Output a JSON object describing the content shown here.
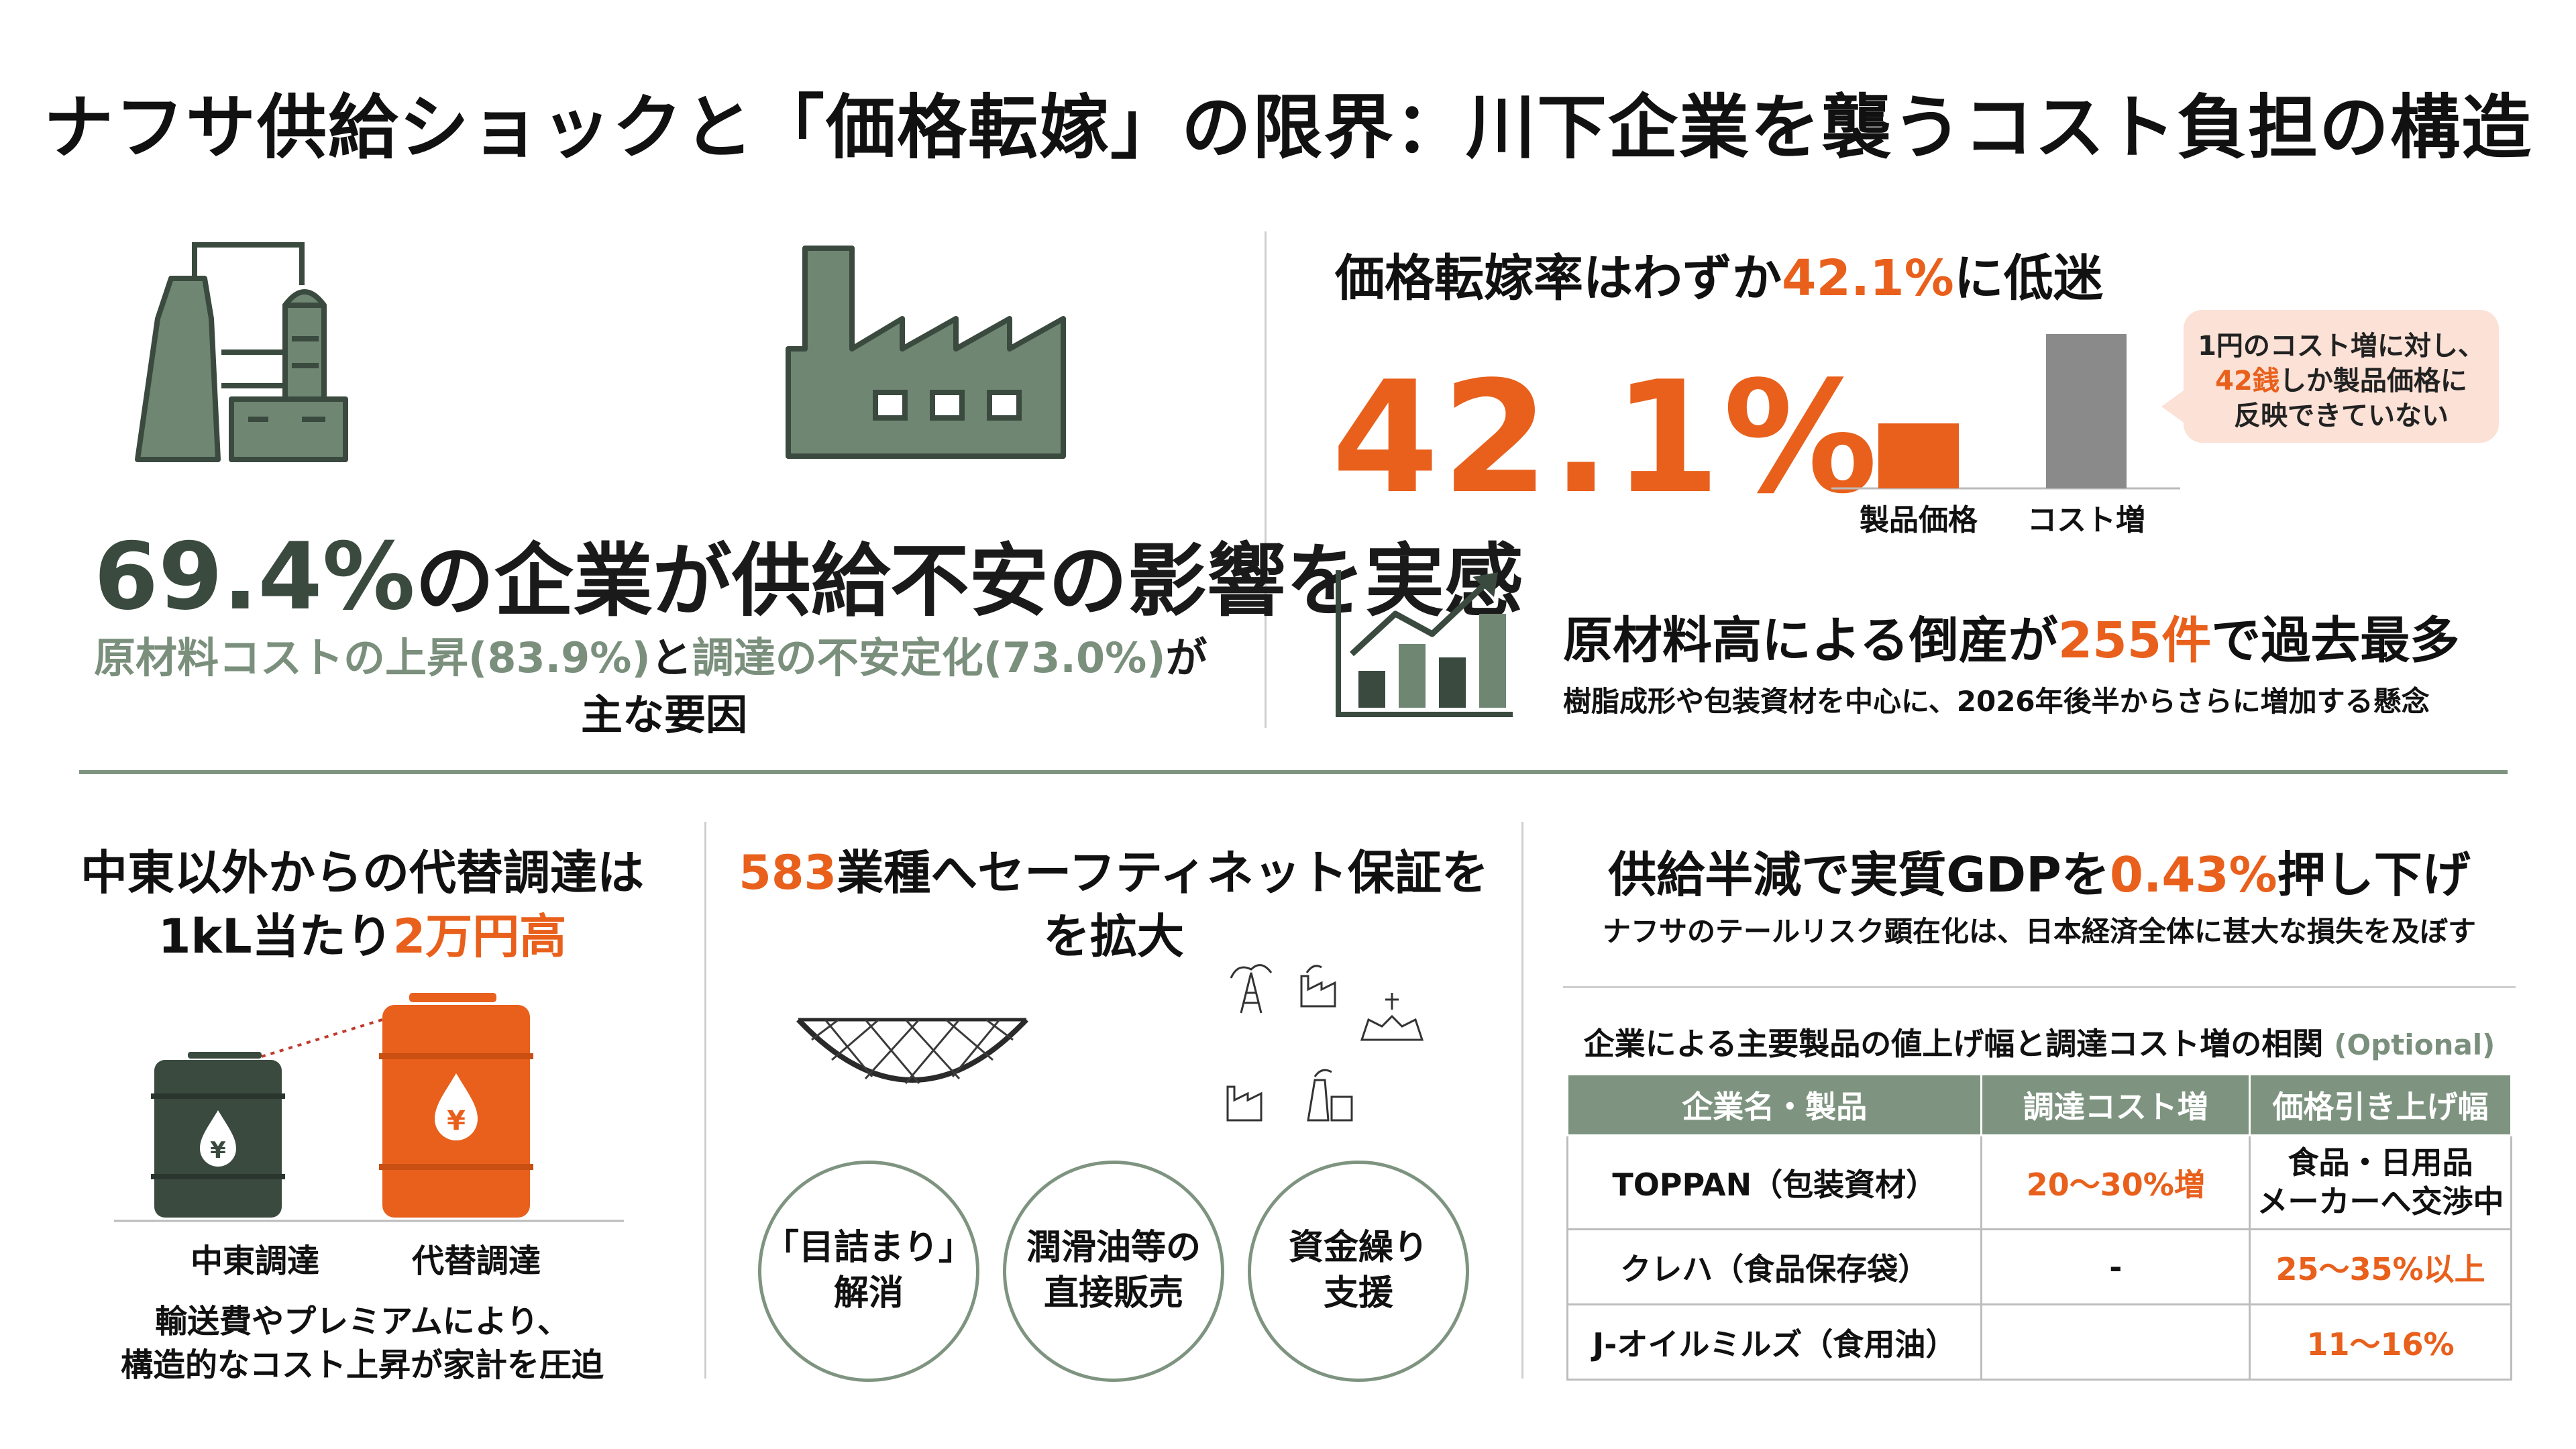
{
  "title": "ナフサ供給ショックと「価格転嫁」の限界：川下企業を襲うコスト負担の構造",
  "panel_supply": {
    "stat_value": "69.4%",
    "stat_text": "の企業が供給不安の影響を実感",
    "cause1": "原材料コストの上昇(83.9%)",
    "joiner": "と",
    "cause2": "調達の不安定化(73.0%)",
    "tail": "が",
    "tail2": "主な要因"
  },
  "panel_pass": {
    "heading_pre": "価格転嫁率はわずか",
    "heading_value": "42.1%",
    "heading_post": "に低迷",
    "big_value": "42.1%",
    "bubble_line1": "1円のコスト増に対し、",
    "bubble_value": "42銭",
    "bubble_line2": "しか製品価格に",
    "bubble_line3": "反映できていない",
    "chart_data": {
      "type": "bar",
      "categories": [
        "製品価格",
        "コスト増"
      ],
      "values": [
        42.1,
        100
      ],
      "colors": [
        "#e8601c",
        "#8a8a8a"
      ]
    }
  },
  "panel_bankrupt": {
    "heading_pre": "原材料高による倒産が",
    "heading_value": "255件",
    "heading_post": "で過去最多",
    "sub": "樹脂成形や包装資材を中心に、2026年後半からさらに増加する懸念"
  },
  "panel_alt": {
    "line1": "中東以外からの代替調達は",
    "line2_pre": "1kL当たり",
    "line2_value": "2万円高",
    "barrel1": "中東調達",
    "barrel2": "代替調達",
    "yen": "¥",
    "note1": "輸送費やプレミアムにより、",
    "note2": "構造的なコスト上昇が家計を圧迫"
  },
  "panel_safety": {
    "line1_value": "583",
    "line1_post": "業種へセーフティネット保証を",
    "line2": "を拡大",
    "circles": [
      {
        "l1": "「目詰まり」",
        "l2": "解消"
      },
      {
        "l1": "潤滑油等の",
        "l2": "直接販売"
      },
      {
        "l1": "資金繰り",
        "l2": "支援"
      }
    ]
  },
  "panel_gdp": {
    "heading_pre": "供給半減で実質GDPを",
    "heading_value": "0.43%",
    "heading_post": "押し下げ",
    "sub": "ナフサのテールリスク顕在化は、日本経済全体に甚大な損失を及ぼす",
    "table_title": "企業による主要製品の値上げ幅と調達コスト増の相関",
    "table_optional": "(Optional)",
    "headers": [
      "企業名・製品",
      "調達コスト増",
      "価格引き上げ幅"
    ],
    "rows": [
      {
        "name": "TOPPAN（包装資材）",
        "cost": "20〜30%増",
        "raise1": "食品・日用品",
        "raise2": "メーカーへ交渉中"
      },
      {
        "name": "クレハ（食品保存袋）",
        "cost": "-",
        "raise1": "25〜35%以上",
        "raise2": ""
      },
      {
        "name": "J-オイルミルズ（食用油）",
        "cost": "",
        "raise1": "11〜16%",
        "raise2": ""
      }
    ]
  },
  "colors": {
    "accent": "#e8601c",
    "green": "#7a8f7c",
    "dark_green": "#3a4a3f",
    "gray": "#8a8a8a"
  }
}
